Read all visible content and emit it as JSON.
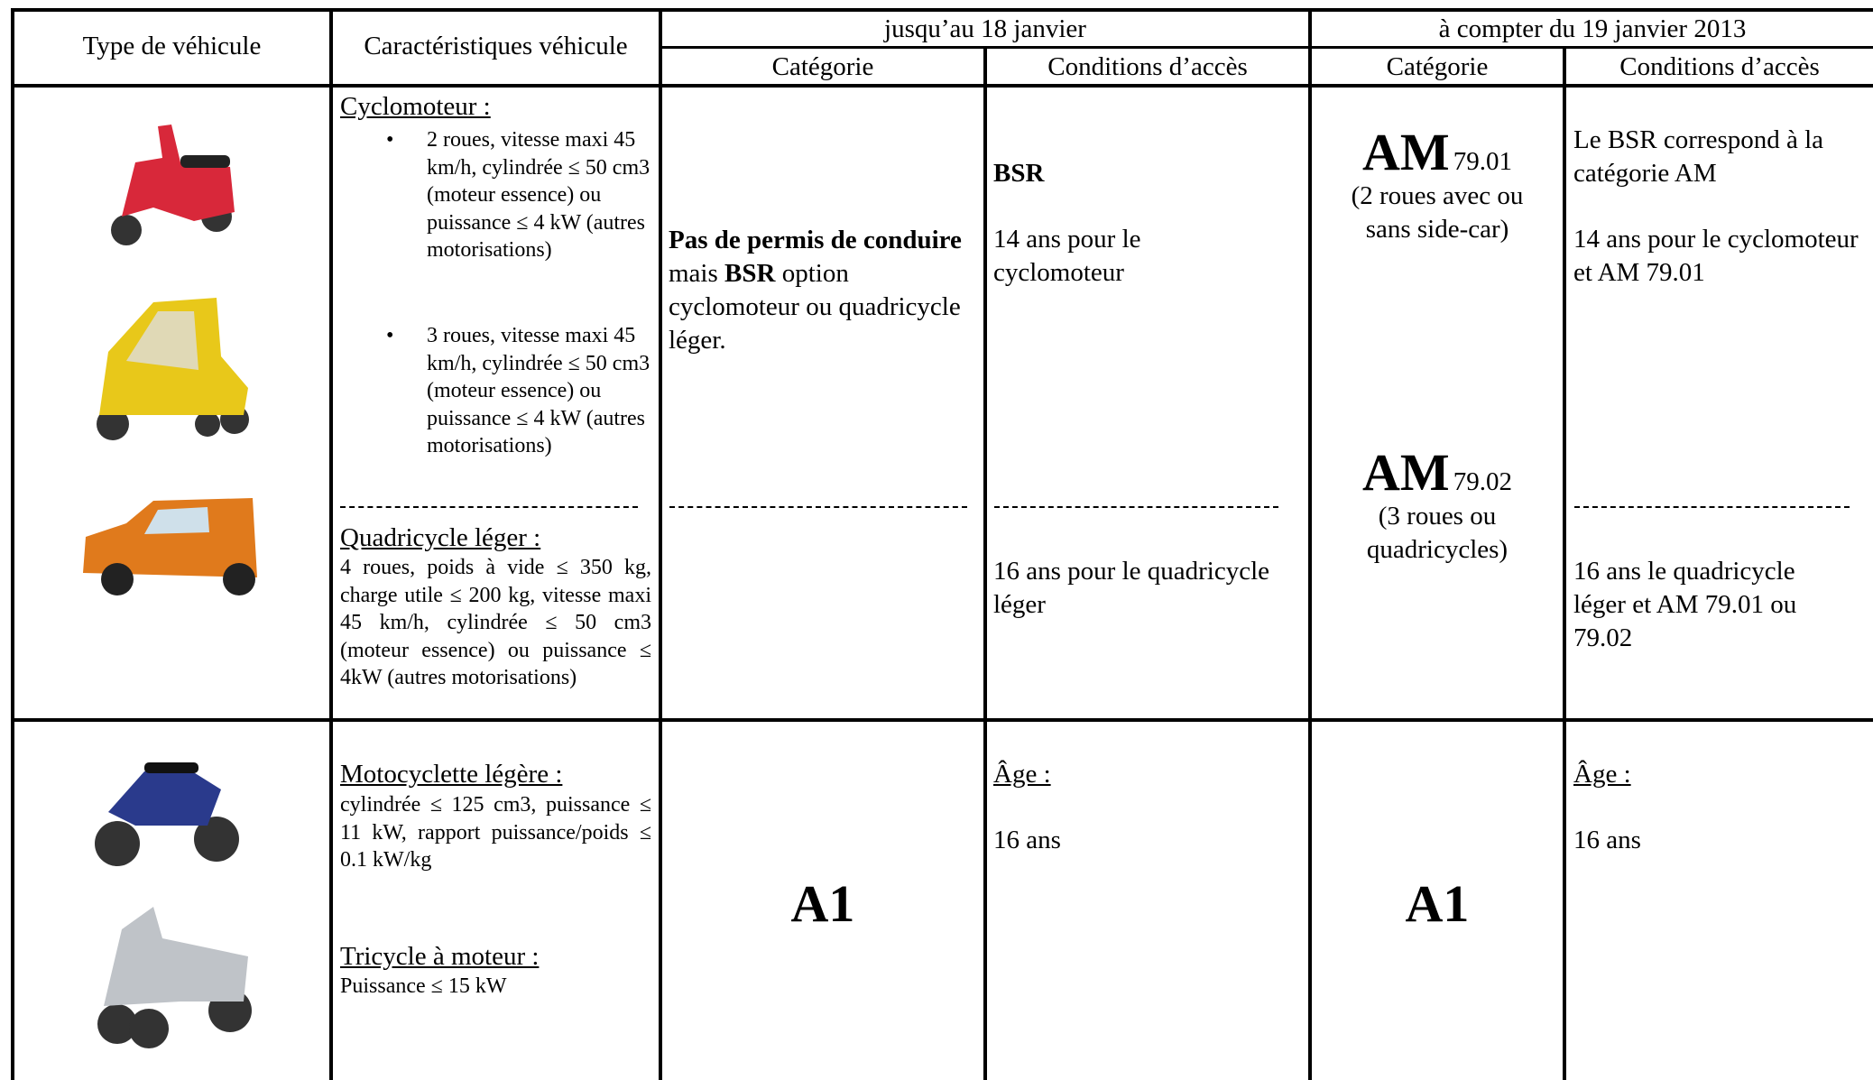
{
  "header": {
    "type": "Type de véhicule",
    "characteristics": "Caractéristiques véhicule",
    "period_old": "jusqu’au 18 janvier",
    "period_new": "à compter du 19 janvier 2013",
    "category_old": "Catégorie",
    "conditions_old": "Conditions d’accès",
    "category_new": "Catégorie",
    "conditions_new": "Conditions d’accès"
  },
  "rows": [
    {
      "vehicles": [
        {
          "title": "Cyclomoteur :",
          "items": [
            "2 roues, vitesse maxi 45 km/h, cylindrée ≤ 50 cm3 (moteur essence) ou puissance ≤ 4 kW (autres motorisations)",
            "3 roues, vitesse maxi 45 km/h, cylindrée ≤ 50 cm3 (moteur essence) ou puissance ≤ 4 kW (autres motorisations)"
          ]
        },
        {
          "title": "Quadricycle léger :",
          "text": "4 roues, poids à vide ≤ 350 kg, charge utile ≤ 200 kg, vitesse maxi 45 km/h, cylindrée ≤ 50 cm3 (moteur essence) ou puissance ≤ 4kW (autres motorisations)"
        }
      ],
      "category_old": [
        {
          "text": "Pas de permis de conduire",
          "bold": true
        },
        {
          "text": "mais",
          "bold": false
        },
        {
          "text": "BSR",
          "bold": true
        },
        {
          "text": "option cyclomoteur ou quadricycle léger.",
          "bold": false
        }
      ],
      "conditions_old": {
        "heading": "BSR",
        "lines": [
          "14 ans pour le cyclomoteur",
          "16 ans pour le quadricycle léger"
        ]
      },
      "category_new": [
        {
          "code": "AM",
          "subcode": "79.01",
          "note": "(2 roues avec ou sans side-car)"
        },
        {
          "code": "AM",
          "subcode": "79.02",
          "note": "(3 roues ou quadricycles)"
        }
      ],
      "conditions_new": [
        "Le BSR correspond à la catégorie AM",
        "14 ans pour le cyclomoteur et AM 79.01",
        "16 ans le quadricycle léger et AM 79.01 ou 79.02"
      ]
    },
    {
      "vehicles": [
        {
          "title": "Motocyclette légère :",
          "text": "cylindrée ≤ 125 cm3, puissance ≤ 11 kW, rapport puissance/poids ≤ 0.1 kW/kg"
        },
        {
          "title": "Tricycle à moteur :",
          "text": "Puissance ≤ 15 kW"
        }
      ],
      "category_old": "A1",
      "conditions_old": {
        "heading": "Âge :",
        "lines": [
          "16 ans"
        ]
      },
      "category_new": "A1",
      "conditions_new": {
        "heading": "Âge :",
        "lines": [
          "16 ans"
        ]
      }
    }
  ]
}
